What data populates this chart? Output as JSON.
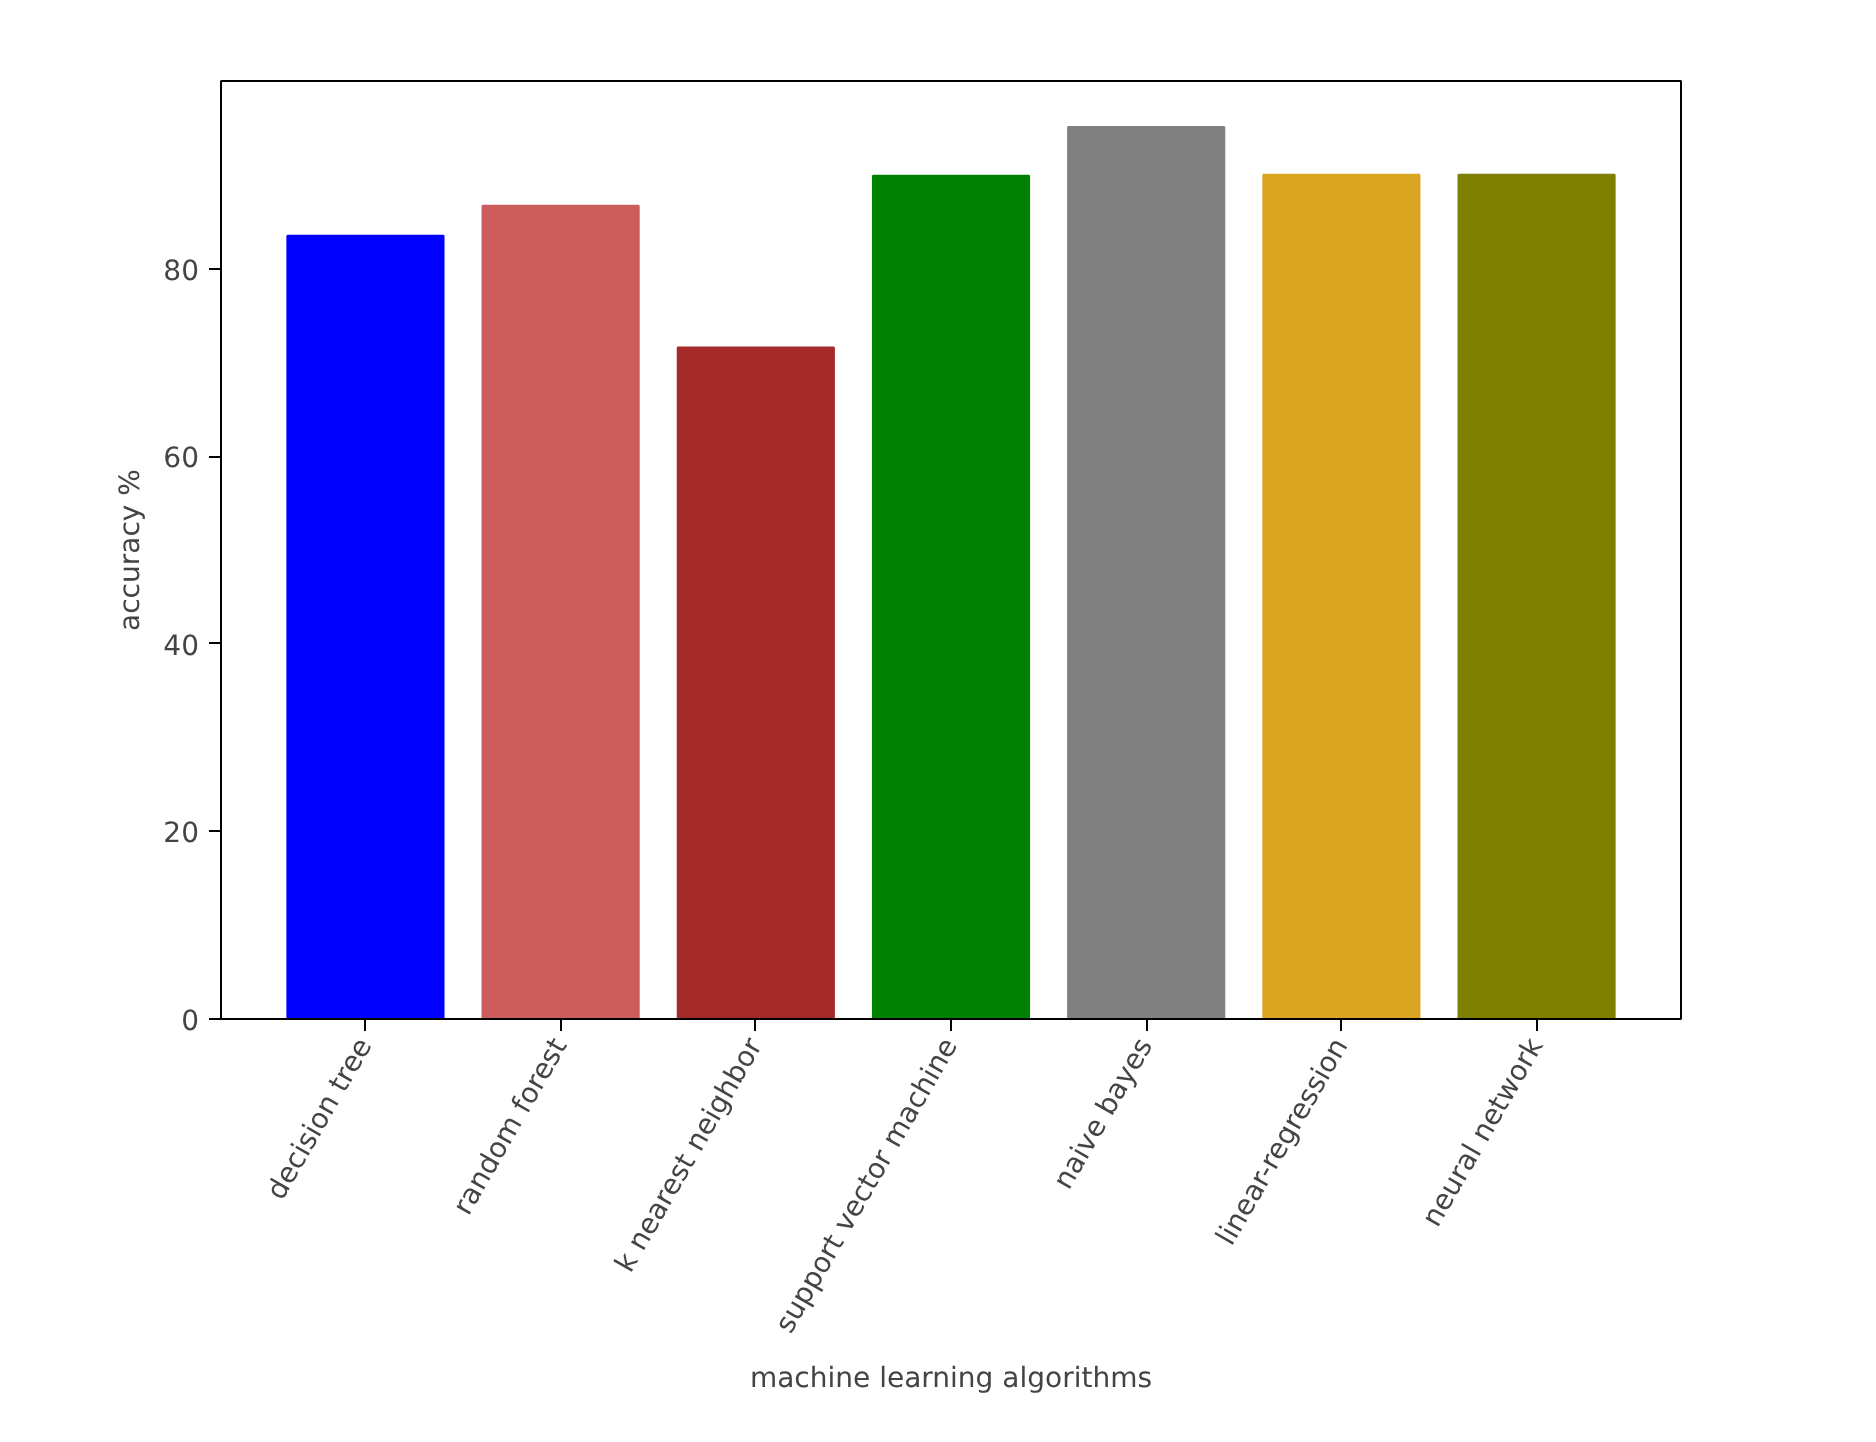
{
  "chart_data": {
    "type": "bar",
    "xlabel": "machine learning algorithms",
    "ylabel": "accuracy %",
    "categories": [
      "decision tree",
      "random forest",
      "k nearest neighbor",
      "support vector machine",
      "naive bayes",
      "linear-regression",
      "neural network"
    ],
    "values": [
      83.5,
      86.7,
      71.6,
      89.9,
      95.1,
      90.0,
      90.0
    ],
    "colors": [
      "#0000ff",
      "#cd5c5c",
      "#a52a2a",
      "#008000",
      "#808080",
      "#daa520",
      "#808000"
    ],
    "ylim": [
      0,
      100
    ],
    "yticks": [
      0,
      20,
      40,
      60,
      80
    ],
    "grid": false
  }
}
